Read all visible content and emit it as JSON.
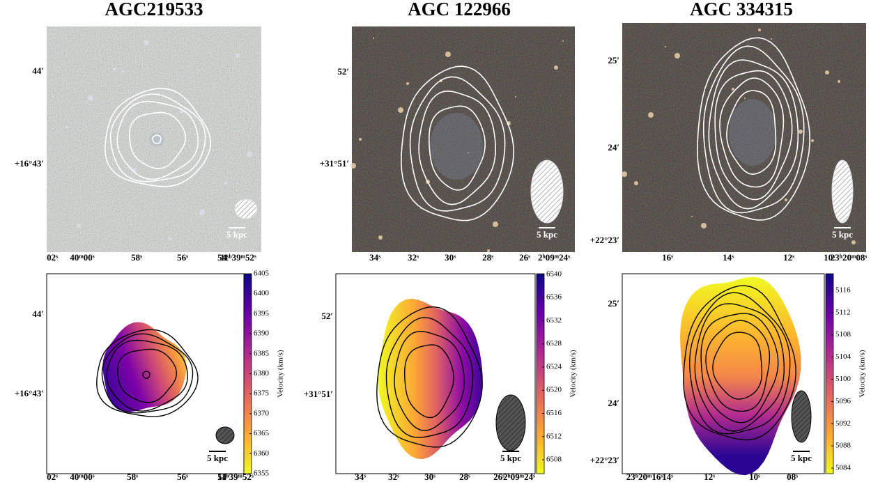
{
  "panels": [
    {
      "title": "AGC219533",
      "top": {
        "ra_labels": [
          "02ˢ",
          "40ᵐ00ˢ",
          "58ˢ",
          "56ˢ",
          "54ˢ",
          "11ʰ39ᵐ52ˢ"
        ],
        "dec_labels": [
          "44′",
          "+16°43′"
        ],
        "scale_label": "5 kpc"
      },
      "bottom": {
        "ra_labels": [
          "02ˢ",
          "40ᵐ00ˢ",
          "58ˢ",
          "56ˢ",
          "54ˢ",
          "11ʰ39ᵐ52ˢ"
        ],
        "dec_labels": [
          "44′",
          "+16°43′"
        ],
        "scale_label": "5 kpc",
        "colorbar": {
          "label": "Velocity (km/s)",
          "lim": [
            6355,
            6405
          ],
          "ticks": [
            6355,
            6360,
            6365,
            6370,
            6375,
            6380,
            6385,
            6390,
            6395,
            6400,
            6405
          ]
        }
      }
    },
    {
      "title": "AGC 122966",
      "top": {
        "ra_labels": [
          "34ˢ",
          "32ˢ",
          "30ˢ",
          "28ˢ",
          "26ˢ",
          "2ʰ09ᵐ24ˢ"
        ],
        "dec_labels": [
          "52′",
          "+31°51′"
        ],
        "scale_label": "5 kpc"
      },
      "bottom": {
        "ra_labels": [
          "34ˢ",
          "32ˢ",
          "30ˢ",
          "28ˢ",
          "26ˢ",
          "2ʰ09ᵐ24ˢ"
        ],
        "dec_labels": [
          "52′",
          "+31°51′"
        ],
        "scale_label": "5 kpc",
        "colorbar": {
          "label": "Velocity (km/s)",
          "lim": [
            6505.6,
            6540.1
          ],
          "ticks": [
            6508,
            6512,
            6516,
            6520,
            6524,
            6528,
            6532,
            6536,
            6540
          ]
        }
      }
    },
    {
      "title": "AGC 334315",
      "top": {
        "ra_labels": [
          "16ˢ",
          "14ˢ",
          "12ˢ",
          "10ˢ",
          "23ʰ20ᵐ08ˢ"
        ],
        "dec_labels": [
          "25′",
          "24′",
          "+22°23′"
        ],
        "scale_label": "5 kpc"
      },
      "bottom": {
        "ra_labels": [
          "23ʰ20ᵐ16ˢ",
          "14ˢ",
          "12ˢ",
          "10ˢ",
          "08ˢ"
        ],
        "dec_labels": [
          "25′",
          "24′",
          "+22°23′"
        ],
        "scale_label": "5 kpc",
        "colorbar": {
          "label": "Velocity (km/s)",
          "lim": [
            5083,
            5119
          ],
          "ticks": [
            5084,
            5088,
            5092,
            5096,
            5100,
            5104,
            5108,
            5112,
            5116
          ]
        }
      }
    }
  ]
}
